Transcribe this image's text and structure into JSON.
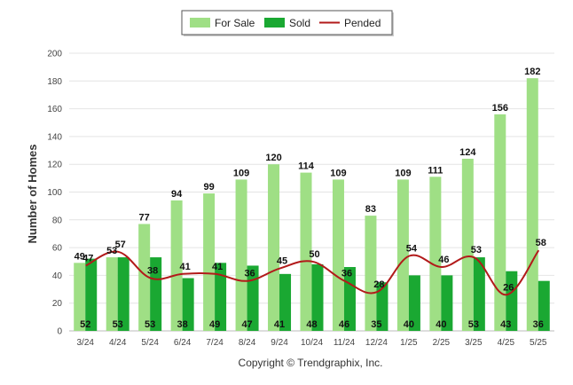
{
  "chart_data": {
    "type": "bar",
    "categories": [
      "3/24",
      "4/24",
      "5/24",
      "6/24",
      "7/24",
      "8/24",
      "9/24",
      "10/24",
      "11/24",
      "12/24",
      "1/25",
      "2/25",
      "3/25",
      "4/25",
      "5/25"
    ],
    "series": [
      {
        "name": "For Sale",
        "type": "bar",
        "values": [
          49,
          53,
          77,
          94,
          99,
          109,
          120,
          114,
          109,
          83,
          109,
          111,
          124,
          156,
          182
        ]
      },
      {
        "name": "Sold",
        "type": "bar",
        "values": [
          52,
          53,
          53,
          38,
          49,
          47,
          41,
          48,
          46,
          35,
          40,
          40,
          53,
          43,
          36
        ]
      },
      {
        "name": "Pended",
        "type": "line",
        "values": [
          47,
          57,
          38,
          41,
          41,
          36,
          45,
          50,
          36,
          28,
          54,
          46,
          53,
          26,
          58
        ]
      }
    ],
    "xlabel": "",
    "ylabel": "Number of Homes",
    "ylim": [
      0,
      200
    ],
    "yticks": [
      0,
      20,
      40,
      60,
      80,
      100,
      120,
      140,
      160,
      180,
      200
    ],
    "grid": true,
    "legend_position": "top-center",
    "colors": {
      "for_sale": "#9fdf85",
      "sold": "#1aa832",
      "pended": "#b21a1a"
    }
  },
  "footer": "Copyright © Trendgraphix, Inc."
}
